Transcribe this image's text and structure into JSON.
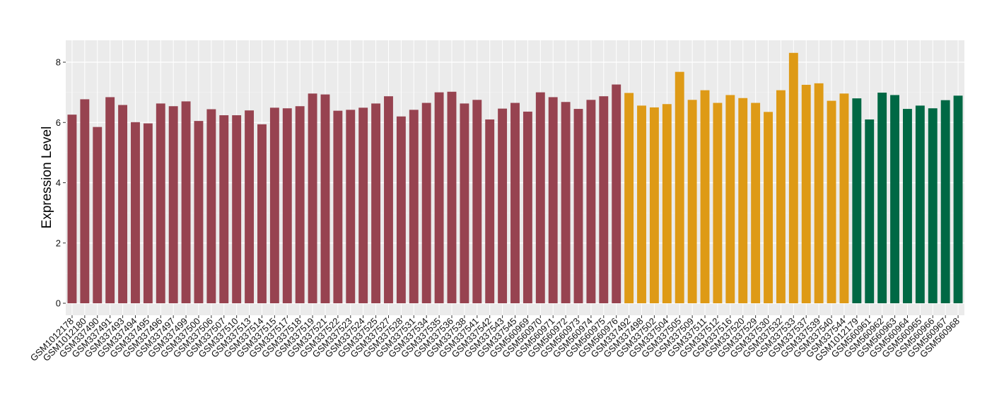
{
  "chart_data": {
    "type": "bar",
    "title": "",
    "xlabel": "",
    "ylabel": "Expression Level",
    "ylim": [
      0,
      8.7
    ],
    "yticks": [
      0,
      2,
      4,
      6,
      8
    ],
    "grid": true,
    "legend": "none",
    "colors": {
      "panel_background": "#EBEBEB",
      "grid_major": "#FFFFFF",
      "group_1": "#974350",
      "group_2": "#DE9A16",
      "group_3": "#006844"
    },
    "categories": [
      "GSM1012178",
      "GSM1012180",
      "GSM337490",
      "GSM337491",
      "GSM337493",
      "GSM337494",
      "GSM337495",
      "GSM337496",
      "GSM337497",
      "GSM337499",
      "GSM337500",
      "GSM337506",
      "GSM337507",
      "GSM337510",
      "GSM337513",
      "GSM337514",
      "GSM337515",
      "GSM337517",
      "GSM337518",
      "GSM337519",
      "GSM337521",
      "GSM337522",
      "GSM337523",
      "GSM337524",
      "GSM337525",
      "GSM337527",
      "GSM337528",
      "GSM337531",
      "GSM337534",
      "GSM337535",
      "GSM337536",
      "GSM337538",
      "GSM337541",
      "GSM337542",
      "GSM337543",
      "GSM337545",
      "GSM560969",
      "GSM560970",
      "GSM560971",
      "GSM560972",
      "GSM560973",
      "GSM560974",
      "GSM560975",
      "GSM560976",
      "GSM337492",
      "GSM337498",
      "GSM337502",
      "GSM337504",
      "GSM337505",
      "GSM337509",
      "GSM337511",
      "GSM337512",
      "GSM337516",
      "GSM337520",
      "GSM337529",
      "GSM337530",
      "GSM337532",
      "GSM337533",
      "GSM337537",
      "GSM337539",
      "GSM337540",
      "GSM337544",
      "GSM1012179",
      "GSM560961",
      "GSM560962",
      "GSM560963",
      "GSM560964",
      "GSM560965",
      "GSM560966",
      "GSM560967",
      "GSM560968"
    ],
    "values": [
      6.26,
      6.77,
      5.85,
      6.84,
      6.58,
      6.01,
      5.97,
      6.63,
      6.54,
      6.7,
      6.05,
      6.44,
      6.24,
      6.24,
      6.4,
      5.94,
      6.49,
      6.47,
      6.54,
      6.96,
      6.93,
      6.39,
      6.42,
      6.49,
      6.63,
      6.87,
      6.2,
      6.42,
      6.65,
      7.0,
      7.02,
      6.63,
      6.75,
      6.1,
      6.46,
      6.65,
      6.36,
      7.0,
      6.84,
      6.68,
      6.45,
      6.75,
      6.87,
      7.26,
      6.98,
      6.56,
      6.5,
      6.61,
      7.68,
      6.75,
      7.07,
      6.65,
      6.91,
      6.81,
      6.65,
      6.35,
      7.07,
      8.31,
      7.25,
      7.3,
      6.72,
      6.96,
      6.8,
      6.1,
      6.99,
      6.91,
      6.45,
      6.56,
      6.47,
      6.74,
      6.89
    ],
    "groups": [
      1,
      1,
      1,
      1,
      1,
      1,
      1,
      1,
      1,
      1,
      1,
      1,
      1,
      1,
      1,
      1,
      1,
      1,
      1,
      1,
      1,
      1,
      1,
      1,
      1,
      1,
      1,
      1,
      1,
      1,
      1,
      1,
      1,
      1,
      1,
      1,
      1,
      1,
      1,
      1,
      1,
      1,
      1,
      1,
      2,
      2,
      2,
      2,
      2,
      2,
      2,
      2,
      2,
      2,
      2,
      2,
      2,
      2,
      2,
      2,
      2,
      2,
      3,
      3,
      3,
      3,
      3,
      3,
      3,
      3,
      3
    ]
  }
}
